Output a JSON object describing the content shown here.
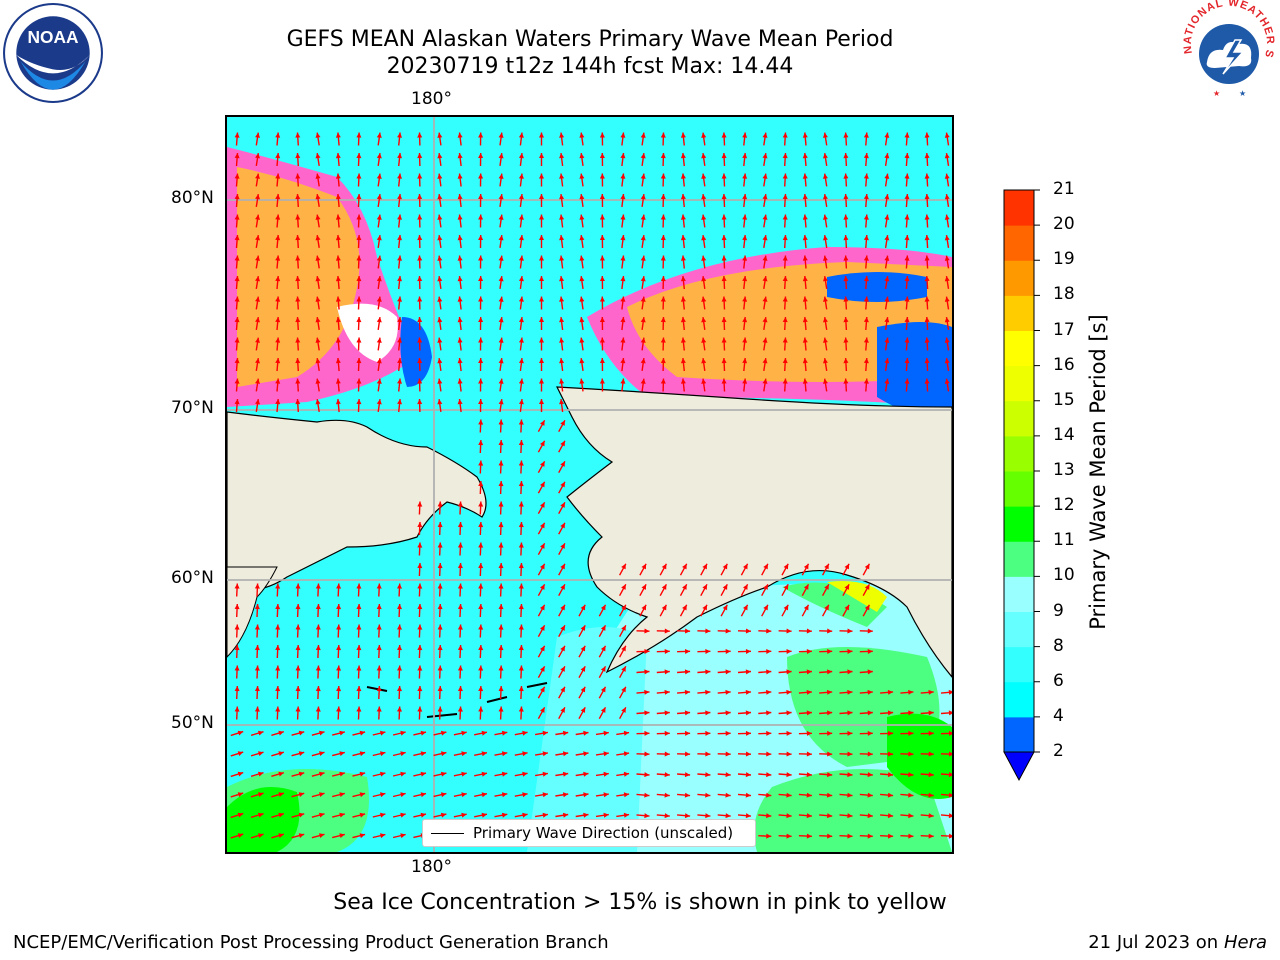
{
  "title": {
    "line1": "GEFS MEAN Alaskan Waters Primary Wave Mean Period",
    "line2": "20230719 t12z 144h fcst   Max: 14.44"
  },
  "logos": {
    "noaa": {
      "text": "NOAA",
      "ring_text": "NATIONAL OCEANIC AND ATMOSPHERIC ADMINISTRATION · U.S. DEPARTMENT OF COMMERCE",
      "icon": "noaa-logo"
    },
    "nws": {
      "ring_text": "NATIONAL WEATHER SERVICE",
      "icon": "nws-logo"
    }
  },
  "map": {
    "lon_label_top": "180°",
    "lon_label_bottom": "180°",
    "lat_labels": [
      "80°N",
      "70°N",
      "60°N",
      "50°N"
    ],
    "legend": "Primary Wave Direction (unscaled)",
    "land_color": "#eeecdc",
    "arrow_color": "#ff0000",
    "grid_color": "#b0b0b0"
  },
  "colorbar": {
    "title": "Primary Wave Mean Period [s]",
    "levels": [
      2,
      4,
      6,
      8,
      9,
      10,
      11,
      12,
      13,
      14,
      15,
      16,
      17,
      18,
      19,
      20,
      21
    ],
    "labels": [
      "2",
      "4",
      "6",
      "8",
      "9",
      "10",
      "11",
      "12",
      "13",
      "14",
      "15",
      "16",
      "17",
      "18",
      "19",
      "20",
      "21"
    ],
    "colors": [
      "#0066ff",
      "#00ffff",
      "#33ffff",
      "#66ffff",
      "#99ffff",
      "#4cff80",
      "#00ff00",
      "#66ff00",
      "#99ff00",
      "#ccff00",
      "#eeff00",
      "#ffff00",
      "#ffcc00",
      "#ff9900",
      "#ff6600",
      "#ff3300",
      "#ff0000"
    ],
    "under_color": "#0000ff"
  },
  "footnote": "Sea Ice Concentration > 15% is shown in pink to yellow",
  "footer": {
    "left": "NCEP/EMC/Verification Post Processing Product Generation Branch",
    "right_prefix": "21 Jul 2023 on ",
    "right_host": "Hera"
  }
}
